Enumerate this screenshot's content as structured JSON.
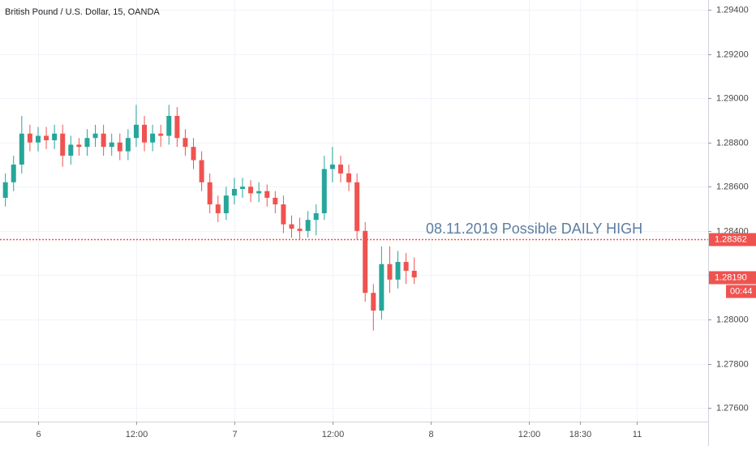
{
  "chart_data": {
    "type": "candlestick",
    "title": "British Pound / U.S. Dollar, 15, OANDA",
    "annotation": "08.11.2019 Possible DAILY HIGH",
    "up_color": "#26a69a",
    "down_color": "#ef5350",
    "grid": true,
    "x": [
      -4,
      -3,
      -2,
      -1,
      0,
      1,
      2,
      3,
      4,
      5,
      6,
      7,
      8,
      9,
      10,
      11,
      12,
      13,
      14,
      15,
      16,
      17,
      18,
      19,
      20,
      21,
      22,
      23,
      24,
      25,
      26,
      27,
      28,
      29,
      30,
      31,
      32,
      33,
      34,
      35,
      36,
      37,
      38,
      39,
      40,
      41,
      42,
      43,
      44,
      45,
      46
    ],
    "open": [
      1.2855,
      1.2862,
      1.287,
      1.2884,
      1.288,
      1.2883,
      1.2881,
      1.2884,
      1.2874,
      1.2879,
      1.2878,
      1.2882,
      1.2884,
      1.2878,
      1.288,
      1.2876,
      1.2882,
      1.2888,
      1.288,
      1.2884,
      1.2883,
      1.2892,
      1.2882,
      1.2878,
      1.2872,
      1.2862,
      1.2852,
      1.2848,
      1.2856,
      1.2859,
      1.286,
      1.2857,
      1.2858,
      1.2855,
      1.2852,
      1.2843,
      1.2841,
      1.284,
      1.2845,
      1.2848,
      1.2868,
      1.287,
      1.2866,
      1.2862,
      1.284,
      1.2812,
      1.2804,
      1.2825,
      1.2818,
      1.2826,
      1.2822
    ],
    "high": [
      1.2866,
      1.2874,
      1.2892,
      1.2888,
      1.2887,
      1.2887,
      1.2888,
      1.2888,
      1.2883,
      1.2882,
      1.2886,
      1.2888,
      1.2888,
      1.2884,
      1.2884,
      1.2886,
      1.2897,
      1.2892,
      1.2888,
      1.2888,
      1.2897,
      1.2896,
      1.2886,
      1.2882,
      1.2876,
      1.2866,
      1.2856,
      1.286,
      1.2864,
      1.2864,
      1.2863,
      1.2862,
      1.2861,
      1.2858,
      1.2856,
      1.2847,
      1.2846,
      1.2849,
      1.2852,
      1.2874,
      1.2878,
      1.2874,
      1.287,
      1.2866,
      1.2844,
      1.2816,
      1.2833,
      1.2833,
      1.2831,
      1.283,
      1.2828
    ],
    "low": [
      1.2851,
      1.2858,
      1.2866,
      1.2876,
      1.2876,
      1.2877,
      1.2877,
      1.2869,
      1.287,
      1.2874,
      1.2874,
      1.2878,
      1.2874,
      1.2874,
      1.2872,
      1.2872,
      1.2878,
      1.2876,
      1.2876,
      1.2878,
      1.2879,
      1.2878,
      1.2874,
      1.2868,
      1.2858,
      1.2848,
      1.2844,
      1.2845,
      1.2852,
      1.2855,
      1.2853,
      1.2853,
      1.2851,
      1.2848,
      1.2839,
      1.2837,
      1.2836,
      1.2837,
      1.2838,
      1.2845,
      1.2862,
      1.2862,
      1.2858,
      1.2836,
      1.2808,
      1.2795,
      1.28,
      1.2812,
      1.2814,
      1.2816,
      1.2816
    ],
    "close": [
      1.2862,
      1.287,
      1.2884,
      1.288,
      1.2883,
      1.2881,
      1.2884,
      1.2874,
      1.2879,
      1.2878,
      1.2882,
      1.2884,
      1.2878,
      1.288,
      1.2876,
      1.2882,
      1.2888,
      1.288,
      1.2884,
      1.2883,
      1.2892,
      1.2882,
      1.2878,
      1.2872,
      1.2862,
      1.2852,
      1.2848,
      1.2856,
      1.2859,
      1.286,
      1.2857,
      1.2858,
      1.2855,
      1.2852,
      1.2843,
      1.2841,
      1.284,
      1.2845,
      1.2848,
      1.2868,
      1.287,
      1.2866,
      1.2862,
      1.284,
      1.2812,
      1.2804,
      1.2825,
      1.2818,
      1.2826,
      1.2822,
      1.2819
    ],
    "xlim": [
      -4.66,
      81.94
    ],
    "xticks": [
      {
        "value": 0,
        "label": "6"
      },
      {
        "value": 12,
        "label": "12:00"
      },
      {
        "value": 24,
        "label": "7"
      },
      {
        "value": 36,
        "label": "12:00"
      },
      {
        "value": 48,
        "label": "8"
      },
      {
        "value": 60,
        "label": "12:00"
      },
      {
        "value": 66.25,
        "label": "18:30"
      },
      {
        "value": 73.2,
        "label": "11"
      }
    ],
    "ylim": [
      1.27538,
      1.29444
    ],
    "yticks": [
      {
        "value": 1.276,
        "label": "1.27600"
      },
      {
        "value": 1.278,
        "label": "1.27800"
      },
      {
        "value": 1.28,
        "label": "1.28000"
      },
      {
        "value": 1.282,
        "label": "1.28200"
      },
      {
        "value": 1.284,
        "label": "1.28400"
      },
      {
        "value": 1.286,
        "label": "1.28600"
      },
      {
        "value": 1.288,
        "label": "1.28800"
      },
      {
        "value": 1.29,
        "label": "1.29000"
      },
      {
        "value": 1.292,
        "label": "1.29200"
      },
      {
        "value": 1.294,
        "label": "1.29400"
      }
    ],
    "hline": {
      "value": 1.28362,
      "label": "1.28362",
      "color": "#ef5350"
    },
    "last_price": {
      "value": 1.2819,
      "label": "1.28190",
      "countdown": "00:44",
      "color": "#ef5350"
    }
  }
}
